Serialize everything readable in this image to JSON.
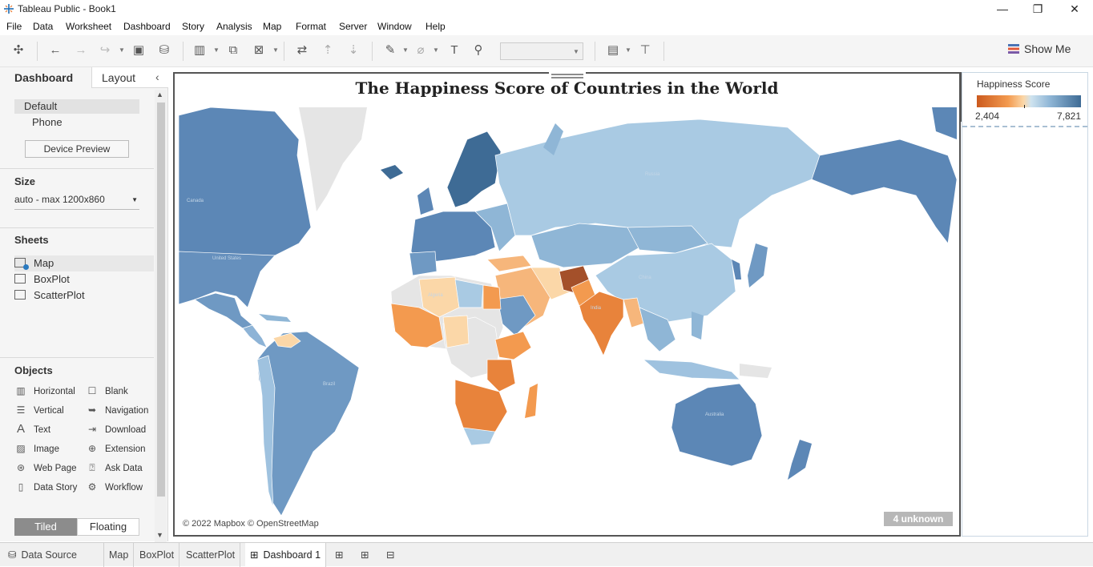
{
  "window": {
    "title": "Tableau Public - Book1",
    "minimize": "—",
    "restore": "❐",
    "close": "✕"
  },
  "menu": [
    "File",
    "Data",
    "Worksheet",
    "Dashboard",
    "Story",
    "Analysis",
    "Map",
    "Format",
    "Server",
    "Window",
    "Help"
  ],
  "toolbar": {
    "show_me": "Show Me"
  },
  "left_panel": {
    "tabs": [
      "Dashboard",
      "Layout"
    ],
    "devices": {
      "default": "Default",
      "phone": "Phone",
      "preview_button": "Device Preview"
    },
    "size": {
      "title": "Size",
      "value": "auto - max 1200x860"
    },
    "sheets": {
      "title": "Sheets",
      "items": [
        "Map",
        "BoxPlot",
        "ScatterPlot"
      ]
    },
    "objects": {
      "title": "Objects",
      "items": [
        "Horizontal",
        "Blank",
        "Vertical",
        "Navigation",
        "Text",
        "Download",
        "Image",
        "Extension",
        "Web Page",
        "Ask Data",
        "Data Story",
        "Workflow"
      ]
    },
    "layout_mode": {
      "tiled": "Tiled",
      "floating": "Floating"
    }
  },
  "dashboard": {
    "title": "The Happiness Score of Countries in the World",
    "attribution": "© 2022 Mapbox © OpenStreetMap",
    "unknown_badge": "4 unknown",
    "map_labels": [
      "Canada",
      "United States",
      "Brazil",
      "Russia",
      "China",
      "India",
      "Algeria",
      "Australia"
    ]
  },
  "legend": {
    "title": "Happiness Score",
    "min": "2,404",
    "max": "7,821",
    "colors": {
      "low": "#cb5a1e",
      "mid": "#fbd7a8",
      "high": "#3e6b95"
    }
  },
  "bottom_tabs": [
    "Data Source",
    "Map",
    "BoxPlot",
    "ScatterPlot",
    "Dashboard 1"
  ]
}
